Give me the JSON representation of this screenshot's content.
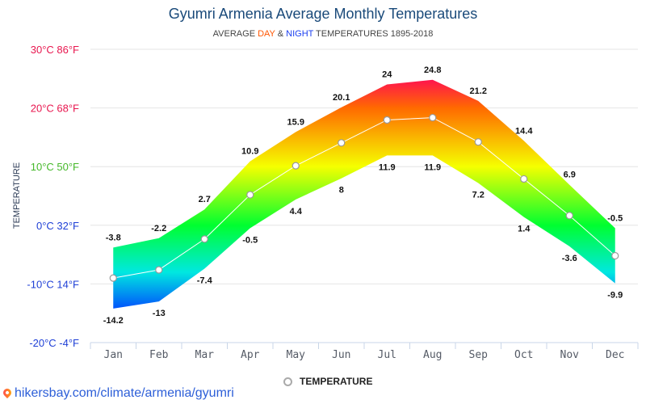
{
  "header": {
    "title": "Gyumri Armenia Average Monthly Temperatures",
    "subtitle_prefix": "AVERAGE ",
    "subtitle_day": "DAY",
    "subtitle_amp": " & ",
    "subtitle_night": "NIGHT",
    "subtitle_suffix": " TEMPERATURES 1895-2018"
  },
  "legend": {
    "label": "TEMPERATURE",
    "icon": "circle-marker-icon"
  },
  "source": {
    "text": "hikersbay.com/climate/armenia/gyumri",
    "icon": "map-pin-icon"
  },
  "colors": {
    "title": "#1a4a7a",
    "day": "#ff5500",
    "night": "#1a3ef0",
    "hot": "#ff1050",
    "warm": "#ff6a00",
    "mild": "#f5ff00",
    "cool": "#00ff30",
    "cold": "#00e8e0",
    "freezing": "#0040ff",
    "tick_warm": "#e8174f",
    "tick_mild": "#45b82a",
    "tick_cold": "#1e3fd6"
  },
  "chart_data": {
    "type": "area",
    "title": "Gyumri Armenia Average Monthly Temperatures",
    "subtitle": "AVERAGE DAY & NIGHT TEMPERATURES 1895-2018",
    "xlabel": "",
    "ylabel": "TEMPERATURE",
    "ylim": [
      -20,
      30
    ],
    "grid": true,
    "legend_position": "bottom-center",
    "categories": [
      "Jan",
      "Feb",
      "Mar",
      "Apr",
      "May",
      "Jun",
      "Jul",
      "Aug",
      "Sep",
      "Oct",
      "Nov",
      "Dec"
    ],
    "y_ticks": [
      {
        "value": 30,
        "label": "30°C 86°F"
      },
      {
        "value": 20,
        "label": "20°C 68°F"
      },
      {
        "value": 10,
        "label": "10°C 50°F"
      },
      {
        "value": 0,
        "label": "0°C 32°F"
      },
      {
        "value": -10,
        "label": "-10°C 14°F"
      },
      {
        "value": -20,
        "label": "-20°C -4°F"
      }
    ],
    "series": [
      {
        "name": "Day",
        "values": [
          -3.8,
          -2.2,
          2.7,
          10.9,
          15.9,
          20.1,
          24,
          24.8,
          21.2,
          14.4,
          6.9,
          -0.5
        ]
      },
      {
        "name": "Night",
        "values": [
          -14.2,
          -13,
          -7.4,
          -0.5,
          4.4,
          8,
          11.9,
          11.9,
          7.2,
          1.4,
          -3.6,
          -9.9
        ]
      },
      {
        "name": "TEMPERATURE",
        "values": [
          -9,
          -7.6,
          -2.35,
          5.2,
          10.15,
          14.05,
          17.95,
          18.35,
          14.2,
          7.9,
          1.65,
          -5.2
        ]
      }
    ]
  }
}
